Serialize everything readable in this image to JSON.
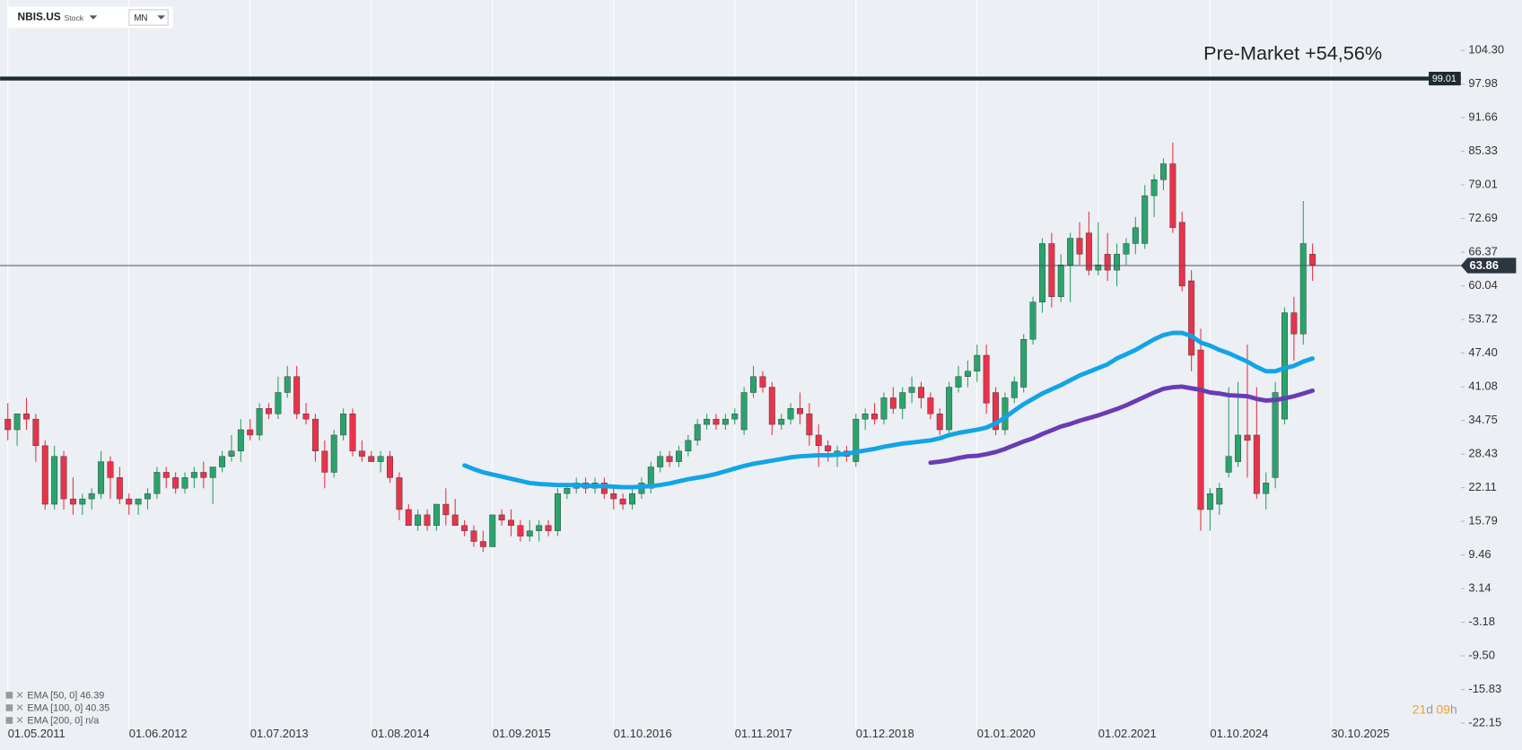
{
  "toolbar": {
    "symbol": "NBIS.US",
    "kind": "Stock",
    "interval": "MN"
  },
  "chart_data": {
    "type": "candlestick",
    "annotation": "Pre-Market +54,56%",
    "resistance": 99.01,
    "last_price": 63.86,
    "up_color": "#2ba36c",
    "down_color": "#e8334a",
    "ylim": [
      -27.2,
      113.78
    ],
    "yticks": [
      {
        "value": 104.3,
        "label": "104.30"
      },
      97.98,
      91.66,
      85.33,
      79.01,
      72.69,
      66.37,
      60.04,
      53.72,
      {
        "value": 47.4,
        "label": "47.40"
      },
      41.08,
      34.75,
      28.43,
      22.11,
      15.79,
      9.46,
      3.14,
      -3.18,
      {
        "value": -9.5,
        "label": "-9.50"
      },
      -15.83,
      -22.15
    ],
    "xlim": [
      -0.83,
      155.9
    ],
    "xticks": [
      {
        "value": 0,
        "label": "01.05.2011"
      },
      {
        "value": 13,
        "label": "01.06.2012"
      },
      {
        "value": 26,
        "label": "01.07.2013"
      },
      {
        "value": 39,
        "label": "01.08.2014"
      },
      {
        "value": 52,
        "label": "01.09.2015"
      },
      {
        "value": 65,
        "label": "01.10.2016"
      },
      {
        "value": 78,
        "label": "01.11.2017"
      },
      {
        "value": 91,
        "label": "01.12.2018"
      },
      {
        "value": 104,
        "label": "01.01.2020"
      },
      {
        "value": 117,
        "label": "01.02.2021"
      },
      {
        "value": 129,
        "label": "01.10.2024"
      },
      {
        "value": 142,
        "label": "30.10.2025"
      }
    ],
    "candles": [
      [
        35,
        38,
        31,
        33
      ],
      [
        33,
        36,
        30,
        36
      ],
      [
        36,
        39,
        33,
        35
      ],
      [
        35,
        36,
        27,
        30
      ],
      [
        30,
        31,
        18,
        19
      ],
      [
        19,
        30,
        18,
        28
      ],
      [
        28,
        29,
        18,
        20
      ],
      [
        20,
        24,
        17,
        19
      ],
      [
        19,
        21,
        17,
        20
      ],
      [
        20,
        22,
        18,
        21
      ],
      [
        21,
        29,
        20,
        27
      ],
      [
        27,
        28,
        20,
        24
      ],
      [
        24,
        26,
        19,
        20
      ],
      [
        20,
        21,
        17,
        19
      ],
      [
        19,
        20,
        17,
        20
      ],
      [
        20,
        22,
        18,
        21
      ],
      [
        21,
        26,
        20,
        25
      ],
      [
        25,
        26,
        22,
        24
      ],
      [
        24,
        25,
        21,
        22
      ],
      [
        22,
        25,
        21,
        24
      ],
      [
        24,
        26,
        22,
        25
      ],
      [
        25,
        27,
        22,
        24
      ],
      [
        24,
        26,
        19,
        26
      ],
      [
        26,
        29,
        25,
        28
      ],
      [
        28,
        32,
        27,
        29
      ],
      [
        29,
        35,
        27,
        33
      ],
      [
        33,
        35,
        31,
        32
      ],
      [
        32,
        38,
        31,
        37
      ],
      [
        37,
        38,
        35,
        36
      ],
      [
        36,
        43,
        35,
        40
      ],
      [
        40,
        45,
        39,
        43
      ],
      [
        43,
        45,
        35,
        36
      ],
      [
        36,
        38,
        34,
        35
      ],
      [
        35,
        36,
        27,
        29
      ],
      [
        29,
        31,
        22,
        25
      ],
      [
        25,
        33,
        24,
        32
      ],
      [
        32,
        37,
        31,
        36
      ],
      [
        36,
        37,
        28,
        29
      ],
      [
        29,
        31,
        27,
        28
      ],
      [
        28,
        29,
        27,
        27
      ],
      [
        27,
        29,
        25,
        28
      ],
      [
        28,
        29,
        23,
        24
      ],
      [
        24,
        25,
        16,
        18
      ],
      [
        18,
        19,
        15,
        15
      ],
      [
        15,
        18,
        14,
        17
      ],
      [
        17,
        18,
        14,
        15
      ],
      [
        15,
        19,
        14,
        19
      ],
      [
        19,
        22,
        15,
        17
      ],
      [
        17,
        20,
        15,
        15
      ],
      [
        15,
        16,
        13,
        14
      ],
      [
        14,
        15,
        11,
        12
      ],
      [
        12,
        14,
        10,
        11
      ],
      [
        11,
        17,
        11,
        17
      ],
      [
        17,
        18,
        15,
        16
      ],
      [
        16,
        18,
        13,
        15
      ],
      [
        15,
        16,
        12,
        13
      ],
      [
        13,
        16,
        12,
        14
      ],
      [
        14,
        16,
        12,
        15
      ],
      [
        15,
        16,
        13,
        14
      ],
      [
        14,
        22,
        13,
        21
      ],
      [
        21,
        23,
        20,
        22
      ],
      [
        22,
        24,
        21,
        23
      ],
      [
        23,
        24,
        21,
        22
      ],
      [
        22,
        24,
        21,
        23
      ],
      [
        23,
        24,
        20,
        21
      ],
      [
        21,
        22,
        18,
        20
      ],
      [
        20,
        21,
        18,
        19
      ],
      [
        19,
        22,
        18,
        21
      ],
      [
        21,
        24,
        20,
        23
      ],
      [
        22,
        27,
        21,
        26
      ],
      [
        26,
        29,
        25,
        28
      ],
      [
        28,
        29,
        26,
        27
      ],
      [
        27,
        30,
        26,
        29
      ],
      [
        29,
        32,
        28,
        31
      ],
      [
        31,
        35,
        30,
        34
      ],
      [
        34,
        36,
        33,
        35
      ],
      [
        35,
        36,
        33,
        34
      ],
      [
        34,
        36,
        33,
        35
      ],
      [
        35,
        37,
        34,
        36
      ],
      [
        33,
        41,
        32,
        40
      ],
      [
        40,
        45,
        39,
        43
      ],
      [
        43,
        44,
        40,
        41
      ],
      [
        41,
        42,
        32,
        34
      ],
      [
        34,
        36,
        33,
        35
      ],
      [
        35,
        38,
        34,
        37
      ],
      [
        37,
        40,
        34,
        36
      ],
      [
        36,
        38,
        30,
        32
      ],
      [
        32,
        34,
        26,
        30
      ],
      [
        30,
        31,
        27,
        29
      ],
      [
        28,
        30,
        26,
        29
      ],
      [
        29,
        30,
        27,
        28
      ],
      [
        27,
        36,
        26,
        35
      ],
      [
        35,
        37,
        33,
        36
      ],
      [
        36,
        38,
        34,
        35
      ],
      [
        35,
        40,
        34,
        39
      ],
      [
        39,
        41,
        36,
        37
      ],
      [
        37,
        41,
        35,
        40
      ],
      [
        40,
        43,
        38,
        41
      ],
      [
        41,
        42,
        37,
        39
      ],
      [
        39,
        40,
        35,
        36
      ],
      [
        36,
        37,
        32,
        33
      ],
      [
        33,
        42,
        32,
        41
      ],
      [
        41,
        45,
        40,
        43
      ],
      [
        43,
        46,
        41,
        44
      ],
      [
        44,
        49,
        42,
        47
      ],
      [
        47,
        49,
        36,
        38
      ],
      [
        40,
        41,
        32,
        33
      ],
      [
        33,
        40,
        32,
        39
      ],
      [
        39,
        43,
        38,
        42
      ],
      [
        41,
        51,
        40,
        50
      ],
      [
        50,
        58,
        49,
        57
      ],
      [
        57,
        69,
        55,
        68
      ],
      [
        68,
        70,
        56,
        58
      ],
      [
        58,
        66,
        57,
        64
      ],
      [
        64,
        70,
        57,
        69
      ],
      [
        69,
        72,
        64,
        66
      ],
      [
        70,
        74,
        62,
        63
      ],
      [
        63,
        72,
        62,
        64
      ],
      [
        66,
        70,
        61,
        63
      ],
      [
        63,
        68,
        60,
        66
      ],
      [
        66,
        69,
        64,
        68
      ],
      [
        68,
        73,
        66,
        71
      ],
      [
        68,
        79,
        67,
        77
      ],
      [
        77,
        81,
        73,
        80
      ],
      [
        80,
        84,
        78,
        83
      ],
      [
        83,
        87,
        70,
        71
      ],
      [
        72,
        74,
        59,
        60
      ],
      [
        61,
        63,
        44,
        47
      ],
      [
        48,
        52,
        14,
        18
      ],
      [
        18,
        22,
        14,
        21
      ],
      [
        19,
        23,
        17,
        22
      ],
      [
        25,
        41,
        24,
        28
      ],
      [
        27,
        42,
        26,
        32
      ],
      [
        32,
        49,
        24,
        31
      ],
      [
        32,
        41,
        20,
        21
      ],
      [
        21,
        25,
        18,
        23
      ],
      [
        24,
        42,
        22,
        40
      ],
      [
        35,
        56,
        34,
        55
      ],
      [
        55,
        58,
        46,
        51
      ],
      [
        51,
        76,
        49,
        68
      ],
      [
        66,
        68,
        61,
        64
      ]
    ],
    "series": [
      {
        "name": "EMA [50, 0] 46.39",
        "color": "#12a4e6",
        "values": [
          null,
          null,
          null,
          null,
          null,
          null,
          null,
          null,
          null,
          null,
          null,
          null,
          null,
          null,
          null,
          null,
          null,
          null,
          null,
          null,
          null,
          null,
          null,
          null,
          null,
          null,
          null,
          null,
          null,
          null,
          null,
          null,
          null,
          null,
          null,
          null,
          null,
          null,
          null,
          null,
          null,
          null,
          null,
          null,
          null,
          null,
          null,
          null,
          null,
          26.3,
          25.6,
          25.0,
          24.6,
          24.2,
          23.8,
          23.4,
          23.0,
          22.8,
          22.7,
          22.6,
          22.6,
          22.6,
          22.5,
          22.4,
          22.4,
          22.3,
          22.2,
          22.2,
          22.3,
          22.4,
          22.6,
          22.9,
          23.3,
          23.7,
          24.0,
          24.3,
          24.7,
          25.2,
          25.7,
          26.2,
          26.6,
          26.9,
          27.2,
          27.5,
          27.8,
          28.0,
          28.1,
          28.2,
          28.2,
          28.3,
          28.5,
          28.8,
          29.1,
          29.4,
          29.8,
          30.1,
          30.4,
          30.6,
          30.8,
          31.0,
          31.4,
          32.0,
          32.4,
          32.7,
          33.0,
          33.4,
          34.2,
          35.3,
          36.6,
          37.8,
          38.8,
          39.8,
          40.6,
          41.4,
          42.3,
          43.2,
          43.9,
          44.6,
          45.3,
          46.4,
          47.2,
          48.0,
          49.0,
          50.0,
          50.8,
          51.2,
          51.2,
          50.6,
          49.4,
          48.8,
          48.0,
          47.4,
          46.6,
          45.8,
          44.8,
          44.0,
          44.0,
          44.6,
          45.0,
          45.8,
          46.39
        ]
      },
      {
        "name": "EMA [100, 0] 40.35",
        "color": "#6a3bb5",
        "values": [
          null,
          null,
          null,
          null,
          null,
          null,
          null,
          null,
          null,
          null,
          null,
          null,
          null,
          null,
          null,
          null,
          null,
          null,
          null,
          null,
          null,
          null,
          null,
          null,
          null,
          null,
          null,
          null,
          null,
          null,
          null,
          null,
          null,
          null,
          null,
          null,
          null,
          null,
          null,
          null,
          null,
          null,
          null,
          null,
          null,
          null,
          null,
          null,
          null,
          null,
          null,
          null,
          null,
          null,
          null,
          null,
          null,
          null,
          null,
          null,
          null,
          null,
          null,
          null,
          null,
          null,
          null,
          null,
          null,
          null,
          null,
          null,
          null,
          null,
          null,
          null,
          null,
          null,
          null,
          null,
          null,
          null,
          null,
          null,
          null,
          null,
          null,
          null,
          null,
          null,
          null,
          null,
          null,
          null,
          null,
          null,
          null,
          null,
          null,
          26.8,
          27.0,
          27.3,
          27.7,
          28.0,
          28.1,
          28.4,
          28.8,
          29.4,
          30.1,
          30.8,
          31.4,
          32.2,
          32.9,
          33.6,
          34.1,
          34.7,
          35.2,
          35.7,
          36.3,
          36.9,
          37.6,
          38.4,
          39.2,
          40.0,
          40.7,
          41.0,
          41.1,
          40.8,
          40.5,
          40.0,
          39.8,
          39.5,
          39.4,
          39.3,
          38.8,
          38.5,
          38.6,
          38.9,
          39.3,
          39.8,
          40.35
        ]
      }
    ],
    "legend_extra": "EMA [200, 0] n/a",
    "countdown": [
      "21",
      "d",
      "09",
      "h"
    ]
  }
}
